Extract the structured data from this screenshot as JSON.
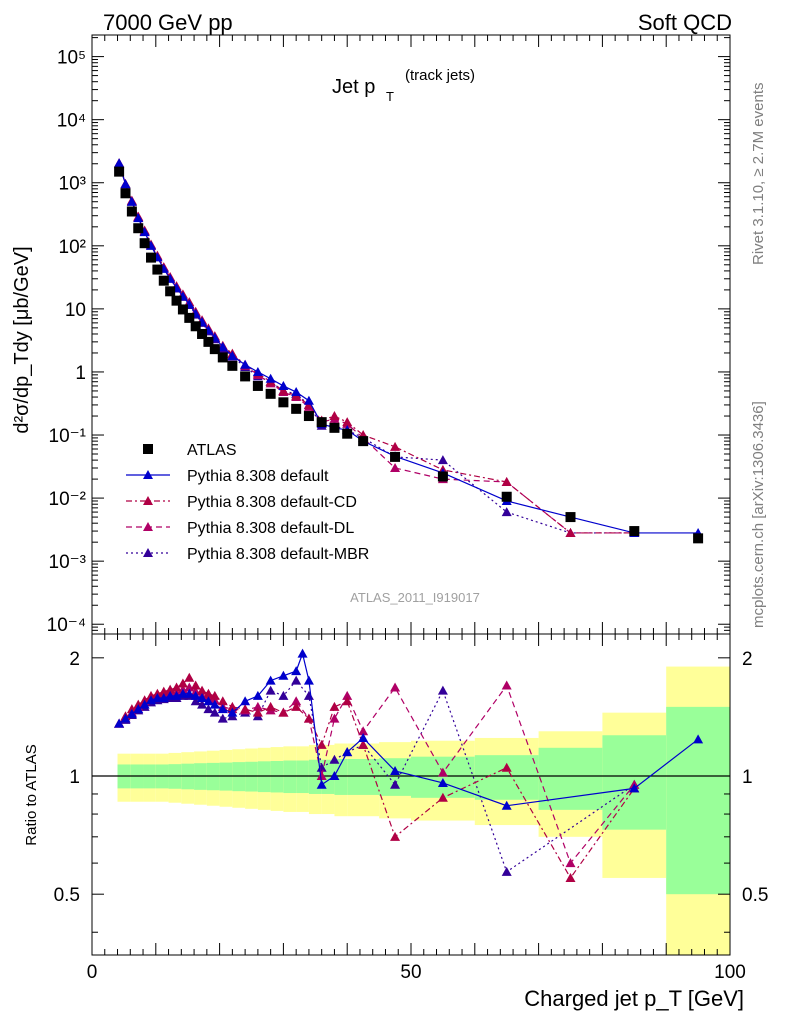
{
  "header": {
    "left": "7000 GeV pp",
    "right": "Soft QCD"
  },
  "side_labels": {
    "rivet": "Rivet 3.1.10, ≥ 2.7M events",
    "mcplots": "mcplots.cern.ch [arXiv:1306.3436]"
  },
  "watermark": "ATLAS_2011_I919017",
  "colors": {
    "atlas": "#000000",
    "default": "#0000cc",
    "cd": "#b00044",
    "dl": "#b00066",
    "mbr": "#330099",
    "band_yellow": "#ffff99",
    "band_green": "#99ff99"
  },
  "chart_data": [
    {
      "type": "scatter",
      "panel": "main",
      "title_main": "Jet p",
      "title_sub": "T",
      "title_note": "(track jets)",
      "ylabel": "d²σ/dp_Tdy [μb/GeV]",
      "yscale": "log",
      "ylim": [
        7e-05,
        220000.0
      ],
      "xlim": [
        0,
        100
      ],
      "y_tick_labels": [
        "10⁻⁴",
        "10⁻³",
        "10⁻²",
        "10⁻¹",
        "1",
        "10",
        "10²",
        "10³",
        "10⁴",
        "10⁵"
      ],
      "y_tick_values": [
        0.0001,
        0.001,
        0.01,
        0.1,
        1,
        10,
        100,
        1000,
        10000,
        100000
      ],
      "legend": [
        {
          "key": "atlas",
          "label": "ATLAS"
        },
        {
          "key": "default",
          "label": "Pythia 8.308 default"
        },
        {
          "key": "cd",
          "label": "Pythia 8.308 default-CD"
        },
        {
          "key": "dl",
          "label": "Pythia 8.308 default-DL"
        },
        {
          "key": "mbr",
          "label": "Pythia 8.308 default-MBR"
        }
      ],
      "atlas_x": [
        4.25,
        5.25,
        6.25,
        7.25,
        8.25,
        9.25,
        10.25,
        11.25,
        12.25,
        13.25,
        14.25,
        15.25,
        16.25,
        17.25,
        18.25,
        19.25,
        20.5,
        22,
        24,
        26,
        28,
        30,
        32,
        34,
        36,
        38,
        40,
        42.5,
        47.5,
        55,
        65,
        75,
        85,
        95
      ],
      "atlas_y": [
        1500,
        680,
        350,
        190,
        110,
        65,
        42,
        28,
        19,
        13.5,
        9.8,
        7.2,
        5.3,
        4.0,
        3.0,
        2.3,
        1.7,
        1.25,
        0.85,
        0.6,
        0.45,
        0.33,
        0.26,
        0.2,
        0.16,
        0.13,
        0.105,
        0.08,
        0.045,
        0.022,
        0.0105,
        0.005,
        0.003,
        0.0023
      ],
      "series": [
        {
          "key": "default",
          "name": "Pythia 8.308 default",
          "x": [
            4.25,
            5.25,
            6.25,
            7.25,
            8.25,
            9.25,
            10.25,
            11.25,
            12.25,
            13.25,
            14.25,
            15.25,
            16.25,
            17.25,
            18.25,
            19.25,
            20.5,
            22,
            24,
            26,
            28,
            30,
            32,
            34,
            36,
            38,
            40,
            42.5,
            47.5,
            55,
            65,
            75,
            85,
            95
          ],
          "y": [
            2040,
            950,
            500,
            275,
            165,
            100,
            66,
            43,
            30,
            21.5,
            15.8,
            11.8,
            8.4,
            6.2,
            4.6,
            3.5,
            2.5,
            1.8,
            1.3,
            1.0,
            0.78,
            0.6,
            0.48,
            0.35,
            0.15,
            0.13,
            0.12,
            0.08,
            0.046,
            0.025,
            0.009,
            0.005,
            0.0028,
            0.0028
          ]
        },
        {
          "key": "cd",
          "name": "Pythia 8.308 default-CD",
          "x": [
            4.25,
            5.25,
            6.25,
            7.25,
            8.25,
            9.25,
            10.25,
            11.25,
            12.25,
            13.25,
            14.25,
            15.25,
            16.25,
            17.25,
            18.25,
            19.25,
            20.5,
            22,
            24,
            26,
            28,
            30,
            32,
            34,
            36,
            38,
            40,
            42.5,
            47.5,
            55,
            65,
            75,
            85,
            95
          ],
          "y": [
            2040,
            960,
            520,
            290,
            175,
            105,
            70,
            46,
            32,
            23,
            17,
            12.8,
            9.0,
            6.6,
            4.9,
            3.7,
            2.6,
            1.95,
            1.3,
            0.95,
            0.7,
            0.5,
            0.42,
            0.3,
            0.17,
            0.2,
            0.16,
            0.1,
            0.065,
            0.028,
            0.018,
            0.0028,
            0.0028,
            null
          ]
        },
        {
          "key": "dl",
          "name": "Pythia 8.308 default-DL",
          "x": [
            4.25,
            5.25,
            6.25,
            7.25,
            8.25,
            9.25,
            10.25,
            11.25,
            12.25,
            13.25,
            14.25,
            15.25,
            16.25,
            17.25,
            18.25,
            19.25,
            20.5,
            22,
            24,
            26,
            28,
            30,
            32,
            34,
            36,
            38,
            40,
            42.5,
            47.5,
            55,
            65,
            75,
            85,
            95
          ],
          "y": [
            2040,
            950,
            510,
            285,
            170,
            103,
            68,
            45,
            31,
            22,
            16.3,
            12.1,
            8.7,
            6.4,
            4.8,
            3.6,
            2.55,
            1.9,
            1.25,
            0.9,
            0.66,
            0.48,
            0.4,
            0.28,
            0.16,
            0.18,
            0.15,
            0.09,
            0.03,
            0.02,
            0.018,
            0.0028,
            0.0028,
            null
          ]
        },
        {
          "key": "mbr",
          "name": "Pythia 8.308 default-MBR",
          "x": [
            4.25,
            5.25,
            6.25,
            7.25,
            8.25,
            9.25,
            10.25,
            11.25,
            12.25,
            13.25,
            14.25,
            15.25,
            16.25,
            17.25,
            18.25,
            19.25,
            20.5,
            22,
            24,
            26,
            28,
            30,
            32,
            34,
            36,
            38,
            40,
            42.5,
            47.5,
            55,
            65,
            75,
            85,
            95
          ],
          "y": [
            2040,
            940,
            500,
            280,
            168,
            100,
            66,
            44,
            30,
            21,
            15.5,
            11.5,
            8.1,
            6.0,
            4.4,
            3.3,
            2.35,
            1.75,
            1.2,
            0.85,
            0.7,
            0.5,
            0.45,
            0.3,
            0.14,
            0.14,
            0.12,
            0.09,
            0.045,
            0.04,
            0.006,
            0.0028,
            0.0028,
            null
          ]
        }
      ]
    },
    {
      "type": "line",
      "panel": "ratio",
      "ylabel": "Ratio to ATLAS",
      "xlabel": "Charged jet p_T [GeV]",
      "xlim": [
        0,
        100
      ],
      "ylim": [
        0.35,
        2.3
      ],
      "yscale": "log",
      "x_tick_labels": [
        "0",
        "50",
        "100"
      ],
      "x_tick_values": [
        0,
        50,
        100
      ],
      "y_tick_labels": [
        "0.5",
        "1",
        "2"
      ],
      "y_tick_values": [
        0.5,
        1,
        2
      ],
      "bands": {
        "edges": [
          4,
          6,
          8,
          10,
          12,
          14,
          16,
          18,
          20,
          22,
          24,
          26,
          28,
          30,
          32,
          34,
          36,
          38,
          40,
          45,
          50,
          60,
          70,
          80,
          90,
          100
        ],
        "yellow": [
          0.14,
          0.14,
          0.14,
          0.14,
          0.145,
          0.15,
          0.155,
          0.16,
          0.165,
          0.17,
          0.175,
          0.18,
          0.185,
          0.19,
          0.19,
          0.2,
          0.2,
          0.21,
          0.21,
          0.22,
          0.23,
          0.25,
          0.3,
          0.45,
          0.9
        ],
        "green": [
          0.07,
          0.07,
          0.07,
          0.07,
          0.072,
          0.075,
          0.078,
          0.08,
          0.082,
          0.085,
          0.087,
          0.09,
          0.092,
          0.095,
          0.095,
          0.1,
          0.1,
          0.105,
          0.105,
          0.11,
          0.12,
          0.13,
          0.18,
          0.27,
          0.5
        ]
      },
      "ratio_series": [
        {
          "key": "default",
          "x": [
            4.25,
            5.25,
            6.25,
            7.25,
            8.25,
            9.25,
            10.25,
            11.25,
            12.25,
            13.25,
            14.25,
            15.25,
            16.25,
            17.25,
            18.25,
            19.25,
            20.5,
            22,
            24,
            26,
            28,
            30,
            32,
            33,
            34,
            36,
            38,
            40,
            42.5,
            47.5,
            55,
            65,
            85,
            95
          ],
          "y": [
            1.36,
            1.4,
            1.44,
            1.48,
            1.52,
            1.56,
            1.58,
            1.58,
            1.6,
            1.6,
            1.62,
            1.62,
            1.6,
            1.58,
            1.55,
            1.52,
            1.48,
            1.45,
            1.55,
            1.6,
            1.75,
            1.8,
            1.85,
            2.05,
            1.75,
            0.95,
            1.0,
            1.15,
            1.25,
            1.03,
            0.96,
            0.84,
            0.93,
            1.24
          ]
        },
        {
          "key": "cd",
          "x": [
            4.25,
            5.25,
            6.25,
            7.25,
            8.25,
            9.25,
            10.25,
            11.25,
            12.25,
            13.25,
            14.25,
            15.25,
            16.25,
            17.25,
            18.25,
            19.25,
            20.5,
            22,
            24,
            26,
            28,
            30,
            32,
            34,
            36,
            38,
            40,
            42.5,
            47.5,
            55,
            65,
            75,
            85
          ],
          "y": [
            1.36,
            1.42,
            1.48,
            1.52,
            1.56,
            1.6,
            1.62,
            1.64,
            1.66,
            1.68,
            1.72,
            1.78,
            1.7,
            1.65,
            1.62,
            1.6,
            1.55,
            1.5,
            1.48,
            1.45,
            1.5,
            1.45,
            1.5,
            1.4,
            1.2,
            1.5,
            1.55,
            1.2,
            0.7,
            0.88,
            1.05,
            0.55,
            0.93
          ]
        },
        {
          "key": "dl",
          "x": [
            4.25,
            5.25,
            6.25,
            7.25,
            8.25,
            9.25,
            10.25,
            11.25,
            12.25,
            13.25,
            14.25,
            15.25,
            16.25,
            17.25,
            18.25,
            19.25,
            20.5,
            22,
            24,
            26,
            28,
            30,
            32,
            34,
            36,
            38,
            40,
            42.5,
            47.5,
            55,
            65,
            75,
            85
          ],
          "y": [
            1.36,
            1.4,
            1.45,
            1.5,
            1.55,
            1.58,
            1.6,
            1.61,
            1.62,
            1.63,
            1.66,
            1.68,
            1.64,
            1.6,
            1.58,
            1.56,
            1.5,
            1.48,
            1.47,
            1.5,
            1.47,
            1.45,
            1.55,
            1.4,
            1.0,
            1.4,
            1.6,
            1.3,
            1.68,
            1.02,
            1.7,
            0.6,
            0.95
          ]
        },
        {
          "key": "mbr",
          "x": [
            4.25,
            5.25,
            6.25,
            7.25,
            8.25,
            9.25,
            10.25,
            11.25,
            12.25,
            13.25,
            14.25,
            15.25,
            16.25,
            17.25,
            18.25,
            19.25,
            20.5,
            22,
            24,
            26,
            28,
            30,
            32,
            34,
            36,
            38,
            40,
            42.5,
            47.5,
            55,
            65,
            85
          ],
          "y": [
            1.36,
            1.39,
            1.43,
            1.47,
            1.5,
            1.54,
            1.56,
            1.57,
            1.58,
            1.58,
            1.6,
            1.6,
            1.55,
            1.52,
            1.48,
            1.45,
            1.4,
            1.42,
            1.45,
            1.42,
            1.65,
            1.6,
            1.75,
            1.6,
            1.05,
            1.1,
            1.15,
            1.2,
            0.95,
            1.65,
            0.57,
            0.95
          ]
        }
      ]
    }
  ]
}
